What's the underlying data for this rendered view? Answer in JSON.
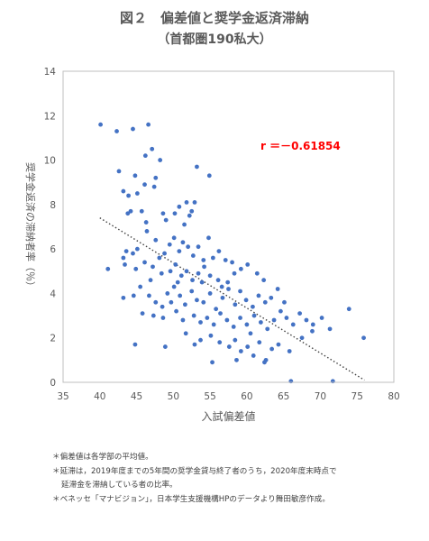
{
  "title": "図２　偏差値と奨学金返済滞納",
  "subtitle": "（首都圏190私大）",
  "annotation": "r ＝－0.61854",
  "annotation_color": "#ff0000",
  "point_color": "#4472c4",
  "notes": [
    "＊偏差値は各学部の平均値。",
    "＊延滞は，2019年度までの5年間の奨学金貸与終了者のうち，2020年度末時点で",
    "延滞金を滞納している者の比率。",
    "＊ベネッセ「マナビジョン」，日本学生支援機構HPのデータより舞田敏彦作成。"
  ],
  "chart_data": {
    "type": "scatter",
    "xlabel": "入試偏差値",
    "ylabel": "奨学金返済の滞納者率（％）",
    "xlim": [
      35,
      80
    ],
    "ylim": [
      0,
      14
    ],
    "xticks": [
      "35",
      "40",
      "45",
      "50",
      "55",
      "60",
      "65",
      "70",
      "75",
      "80"
    ],
    "yticks": [
      "0",
      "2",
      "4",
      "6",
      "8",
      "10",
      "12",
      "14"
    ],
    "trendline": {
      "x": [
        40,
        76
      ],
      "y": [
        7.4,
        0.1
      ],
      "style": "dotted"
    },
    "points": [
      [
        40.1,
        11.6
      ],
      [
        42.3,
        11.3
      ],
      [
        44.5,
        11.4
      ],
      [
        46.6,
        11.6
      ],
      [
        47.1,
        10.5
      ],
      [
        46.2,
        10.2
      ],
      [
        48.2,
        10.0
      ],
      [
        53.2,
        9.7
      ],
      [
        54.9,
        9.3
      ],
      [
        42.6,
        9.5
      ],
      [
        44.8,
        9.3
      ],
      [
        46.1,
        8.9
      ],
      [
        47.6,
        9.2
      ],
      [
        43.2,
        8.6
      ],
      [
        43.9,
        8.4
      ],
      [
        45.1,
        8.5
      ],
      [
        47.4,
        8.8
      ],
      [
        51.8,
        8.1
      ],
      [
        52.9,
        8.1
      ],
      [
        50.8,
        7.9
      ],
      [
        44.2,
        7.7
      ],
      [
        45.7,
        7.7
      ],
      [
        48.6,
        7.6
      ],
      [
        50.2,
        7.6
      ],
      [
        52.5,
        7.7
      ],
      [
        43.8,
        7.6
      ],
      [
        46.3,
        7.2
      ],
      [
        49.0,
        7.3
      ],
      [
        51.5,
        7.1
      ],
      [
        52.2,
        7.5
      ],
      [
        41.1,
        5.1
      ],
      [
        43.2,
        5.6
      ],
      [
        43.6,
        5.9
      ],
      [
        44.5,
        5.8
      ],
      [
        45.1,
        6.0
      ],
      [
        46.4,
        6.8
      ],
      [
        47.6,
        6.4
      ],
      [
        48.1,
        5.6
      ],
      [
        48.8,
        5.8
      ],
      [
        49.5,
        6.2
      ],
      [
        50.1,
        6.5
      ],
      [
        50.8,
        5.9
      ],
      [
        51.3,
        6.3
      ],
      [
        52.0,
        6.1
      ],
      [
        52.7,
        5.7
      ],
      [
        53.4,
        6.1
      ],
      [
        54.1,
        5.5
      ],
      [
        54.8,
        6.5
      ],
      [
        55.4,
        5.6
      ],
      [
        56.2,
        5.9
      ],
      [
        57.1,
        5.5
      ],
      [
        58.0,
        5.4
      ],
      [
        43.4,
        5.3
      ],
      [
        44.9,
        5.1
      ],
      [
        46.1,
        5.4
      ],
      [
        47.2,
        5.2
      ],
      [
        48.4,
        4.9
      ],
      [
        49.6,
        5.0
      ],
      [
        50.3,
        5.3
      ],
      [
        51.1,
        4.8
      ],
      [
        51.8,
        5.0
      ],
      [
        52.6,
        4.6
      ],
      [
        53.4,
        4.9
      ],
      [
        54.2,
        5.2
      ],
      [
        55.0,
        4.8
      ],
      [
        56.1,
        4.6
      ],
      [
        57.4,
        4.5
      ],
      [
        58.3,
        4.9
      ],
      [
        59.2,
        5.1
      ],
      [
        60.1,
        5.3
      ],
      [
        61.4,
        4.9
      ],
      [
        62.3,
        4.6
      ],
      [
        43.2,
        3.8
      ],
      [
        44.6,
        3.9
      ],
      [
        45.5,
        4.3
      ],
      [
        46.7,
        3.9
      ],
      [
        47.6,
        3.6
      ],
      [
        48.5,
        3.4
      ],
      [
        49.2,
        4.0
      ],
      [
        50.1,
        4.3
      ],
      [
        50.9,
        3.9
      ],
      [
        51.6,
        3.5
      ],
      [
        52.5,
        4.1
      ],
      [
        53.2,
        3.7
      ],
      [
        54.1,
        3.6
      ],
      [
        55.0,
        4.0
      ],
      [
        55.8,
        3.3
      ],
      [
        56.7,
        3.8
      ],
      [
        57.5,
        4.2
      ],
      [
        58.4,
        3.5
      ],
      [
        59.1,
        4.1
      ],
      [
        59.9,
        3.7
      ],
      [
        60.8,
        3.4
      ],
      [
        61.6,
        3.9
      ],
      [
        62.5,
        3.6
      ],
      [
        63.3,
        3.8
      ],
      [
        64.2,
        4.2
      ],
      [
        65.1,
        3.6
      ],
      [
        45.8,
        3.1
      ],
      [
        47.3,
        3.0
      ],
      [
        48.6,
        2.9
      ],
      [
        50.4,
        3.2
      ],
      [
        51.3,
        2.8
      ],
      [
        52.8,
        3.0
      ],
      [
        53.7,
        2.7
      ],
      [
        54.6,
        2.9
      ],
      [
        55.5,
        2.6
      ],
      [
        56.4,
        3.1
      ],
      [
        57.3,
        2.8
      ],
      [
        58.2,
        2.5
      ],
      [
        59.1,
        2.9
      ],
      [
        60.0,
        2.6
      ],
      [
        61.0,
        3.0
      ],
      [
        61.9,
        2.7
      ],
      [
        62.8,
        2.4
      ],
      [
        63.7,
        2.8
      ],
      [
        64.6,
        3.2
      ],
      [
        65.4,
        2.9
      ],
      [
        66.3,
        2.6
      ],
      [
        67.2,
        3.1
      ],
      [
        68.1,
        2.8
      ],
      [
        69.0,
        2.6
      ],
      [
        70.2,
        2.9
      ],
      [
        71.3,
        2.4
      ],
      [
        73.9,
        3.3
      ],
      [
        44.8,
        1.7
      ],
      [
        48.9,
        1.6
      ],
      [
        51.7,
        2.2
      ],
      [
        52.9,
        1.7
      ],
      [
        53.7,
        1.9
      ],
      [
        55.1,
        2.1
      ],
      [
        56.3,
        1.8
      ],
      [
        57.6,
        1.6
      ],
      [
        58.4,
        1.9
      ],
      [
        59.2,
        1.4
      ],
      [
        60.1,
        1.6
      ],
      [
        60.9,
        1.2
      ],
      [
        61.7,
        1.8
      ],
      [
        62.6,
        1.0
      ],
      [
        63.4,
        1.5
      ],
      [
        64.3,
        1.7
      ],
      [
        65.8,
        1.4
      ],
      [
        67.5,
        2.0
      ],
      [
        68.9,
        2.3
      ],
      [
        75.9,
        2.0
      ],
      [
        55.3,
        0.9
      ],
      [
        62.4,
        0.9
      ],
      [
        66.0,
        0.05
      ],
      [
        71.7,
        0.05
      ],
      [
        58.6,
        1.0
      ],
      [
        60.5,
        2.2
      ],
      [
        49.7,
        3.6
      ],
      [
        53.9,
        4.5
      ],
      [
        56.6,
        4.3
      ],
      [
        46.9,
        4.6
      ],
      [
        50.6,
        4.5
      ]
    ]
  }
}
